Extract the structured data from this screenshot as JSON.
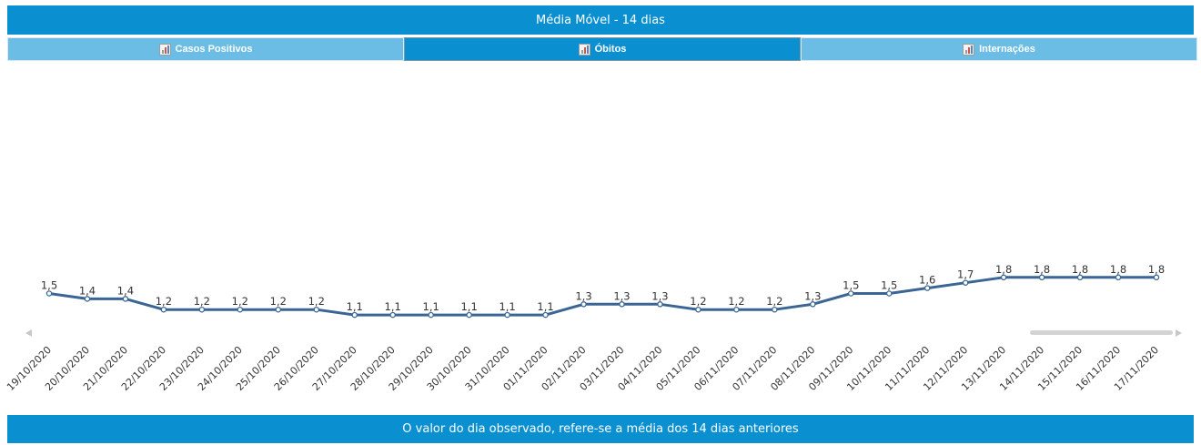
{
  "header": {
    "title": "Média Móvel - 14 dias"
  },
  "tabs": [
    {
      "label": "Casos Positivos",
      "icon": "bar-chart-icon",
      "active": false
    },
    {
      "label": "Óbitos",
      "icon": "bar-chart-icon",
      "active": true
    },
    {
      "label": "Internações",
      "icon": "bar-chart-icon",
      "active": false
    }
  ],
  "footer": {
    "text": "O valor do dia observado, refere-se a média dos 14 dias anteriores"
  },
  "colors": {
    "accent": "#0a8fd1",
    "tab_inactive": "#6bbde5",
    "line": "#3a6594"
  },
  "chart_data": {
    "type": "line",
    "title": "",
    "xlabel": "",
    "ylabel": "",
    "ylim": [
      0,
      5
    ],
    "grid": false,
    "x": [
      "19/10/2020",
      "20/10/2020",
      "21/10/2020",
      "22/10/2020",
      "23/10/2020",
      "24/10/2020",
      "25/10/2020",
      "26/10/2020",
      "27/10/2020",
      "28/10/2020",
      "29/10/2020",
      "30/10/2020",
      "31/10/2020",
      "01/11/2020",
      "02/11/2020",
      "03/11/2020",
      "04/11/2020",
      "05/11/2020",
      "06/11/2020",
      "07/11/2020",
      "08/11/2020",
      "09/11/2020",
      "10/11/2020",
      "11/11/2020",
      "12/11/2020",
      "13/11/2020",
      "14/11/2020",
      "15/11/2020",
      "16/11/2020",
      "17/11/2020"
    ],
    "series": [
      {
        "values": [
          1.5,
          1.4,
          1.4,
          1.2,
          1.2,
          1.2,
          1.2,
          1.2,
          1.1,
          1.1,
          1.1,
          1.1,
          1.1,
          1.1,
          1.3,
          1.3,
          1.3,
          1.2,
          1.2,
          1.2,
          1.3,
          1.5,
          1.5,
          1.6,
          1.7,
          1.8,
          1.8,
          1.8,
          1.8,
          1.8
        ],
        "labels": [
          "1,5",
          "1,4",
          "1,4",
          "1,2",
          "1,2",
          "1,2",
          "1,2",
          "1,2",
          "1,1",
          "1,1",
          "1,1",
          "1,1",
          "1,1",
          "1,1",
          "1,3",
          "1,3",
          "1,3",
          "1,2",
          "1,2",
          "1,2",
          "1,3",
          "1,5",
          "1,5",
          "1,6",
          "1,7",
          "1,8",
          "1,8",
          "1,8",
          "1,8",
          "1,8"
        ]
      }
    ]
  }
}
